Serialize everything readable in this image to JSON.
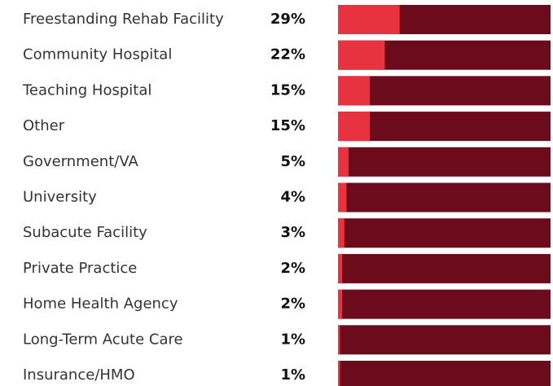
{
  "chart_data": {
    "type": "bar",
    "orientation": "horizontal",
    "categories": [
      "Freestanding Rehab Facility",
      "Community Hospital",
      "Teaching Hospital",
      "Other",
      "Government/VA",
      "University",
      "Subacute Facility",
      "Private Practice",
      "Home Health Agency",
      "Long-Term Acute Care",
      "Insurance/HMO"
    ],
    "values": [
      29,
      22,
      15,
      15,
      5,
      4,
      3,
      2,
      2,
      1,
      1
    ],
    "value_labels": [
      "29%",
      "22%",
      "15%",
      "15%",
      "5%",
      "4%",
      "3%",
      "2%",
      "2%",
      "1%",
      "1%"
    ],
    "color": "#e8323f",
    "background_color": "#6b0b1c",
    "xlim": [
      0,
      100
    ]
  }
}
